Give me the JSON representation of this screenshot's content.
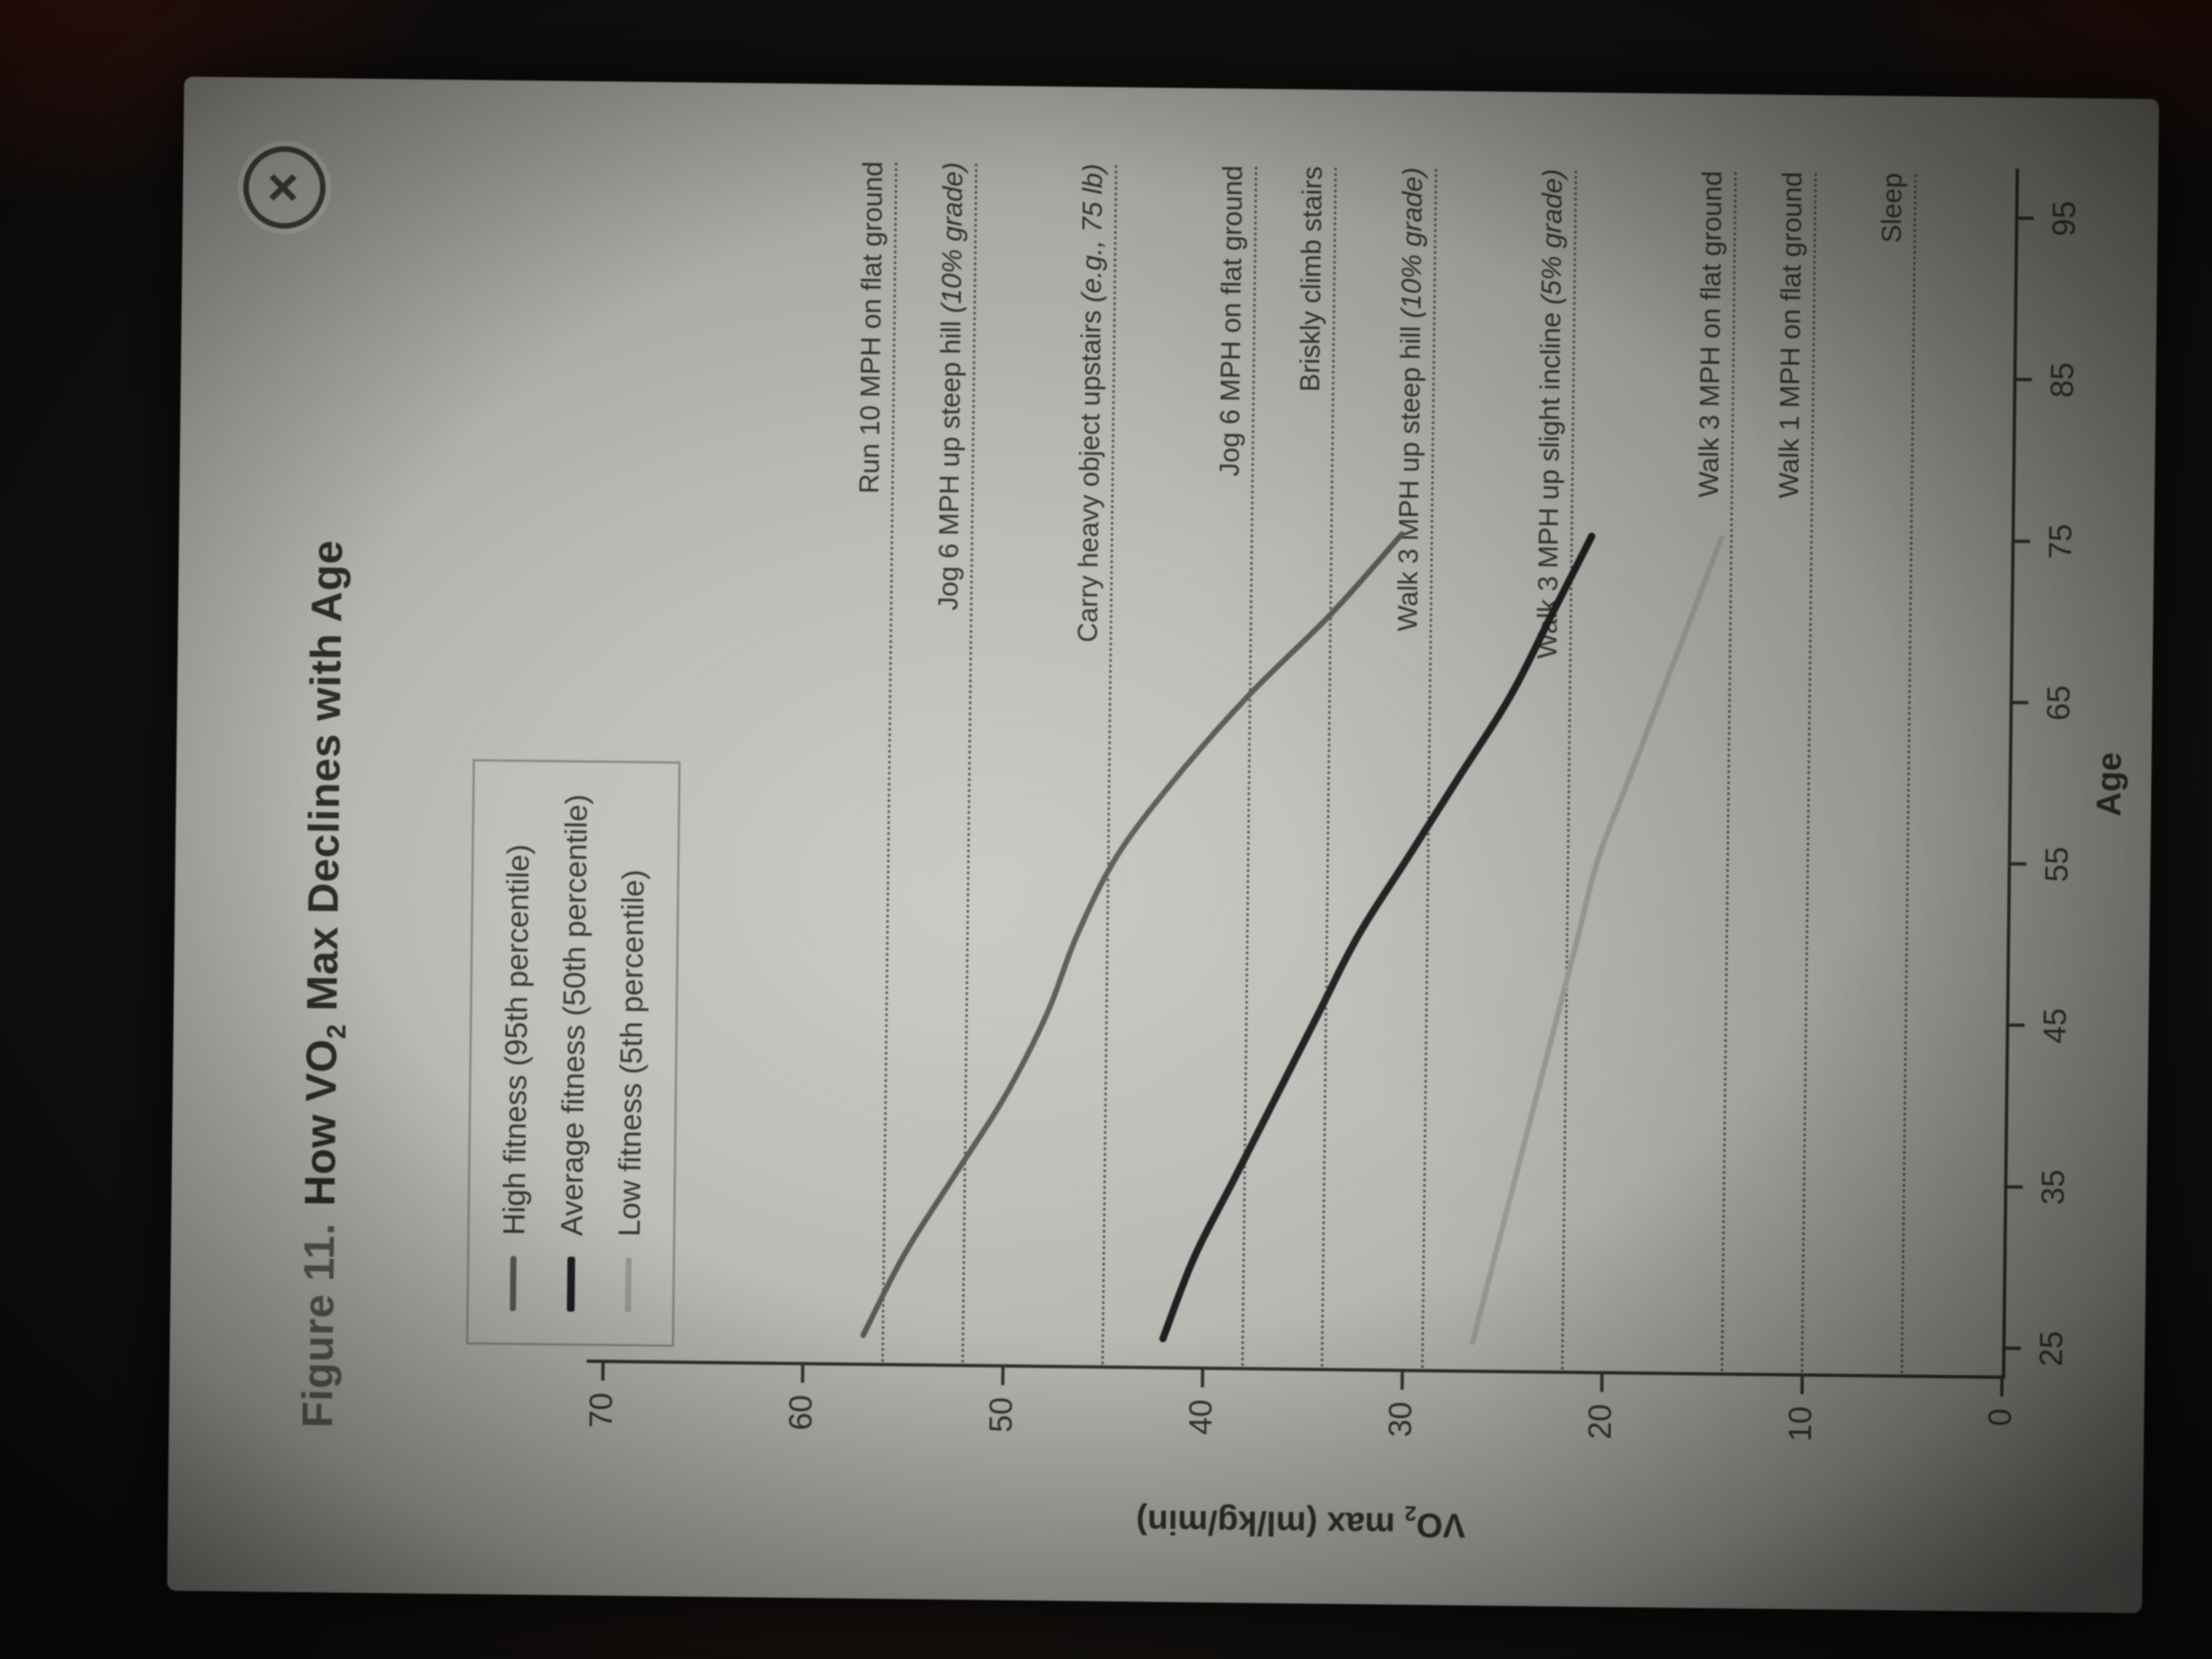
{
  "close_button": {
    "glyph": "×"
  },
  "figure": {
    "title_prefix": "Figure 11.",
    "title_pre": "How VO",
    "title_sub": "2",
    "title_post": " Max Declines with Age"
  },
  "chart_data": {
    "type": "line",
    "title": "Figure 11. How VO2 Max Declines with Age",
    "xlabel": "Age",
    "ylabel": "VO2 max (ml/kg/min)",
    "ylabel_pre": "VO",
    "ylabel_sub": "2",
    "ylabel_post": " max (ml/kg/min)",
    "xlim": [
      25,
      95
    ],
    "ylim": [
      0,
      70
    ],
    "x_ticks": [
      25,
      35,
      45,
      55,
      65,
      75,
      85,
      95
    ],
    "y_ticks": [
      70,
      60,
      50,
      40,
      30,
      20,
      10,
      0
    ],
    "grid": false,
    "legend_position": "top-left",
    "series": [
      {
        "name": "High fitness (95th percentile)",
        "color": "#575652",
        "width": 10,
        "x": [
          25,
          30,
          35,
          40,
          45,
          50,
          55,
          60,
          65,
          70,
          75
        ],
        "y": [
          57,
          55,
          52.5,
          50,
          48,
          46.5,
          44.5,
          41.5,
          38,
          34,
          30.5
        ]
      },
      {
        "name": "Average fitness (50th percentile)",
        "color": "#1b1c1e",
        "width": 13,
        "x": [
          25,
          30,
          35,
          40,
          45,
          50,
          55,
          60,
          65,
          70,
          75
        ],
        "y": [
          42,
          40.5,
          38.5,
          36.5,
          34.5,
          32.5,
          30,
          27.5,
          25,
          23,
          21
        ]
      },
      {
        "name": "Low fitness (5th percentile)",
        "color": "#9a9992",
        "width": 10,
        "x": [
          25,
          30,
          35,
          40,
          45,
          50,
          55,
          60,
          65,
          70,
          75
        ],
        "y": [
          26.5,
          25.5,
          24.5,
          23.5,
          22.5,
          21.5,
          20.5,
          19,
          17.5,
          16,
          14.5
        ]
      }
    ],
    "reference_lines": [
      {
        "value": 56,
        "label": "Run 10 MPH on flat ground",
        "note": ""
      },
      {
        "value": 52,
        "label": "Jog 6 MPH up steep hill ",
        "note": "(10% grade)"
      },
      {
        "value": 45,
        "label": "Carry heavy object upstairs ",
        "note": "(e.g., 75 lb)"
      },
      {
        "value": 38,
        "label": "Jog 6 MPH on flat ground",
        "note": ""
      },
      {
        "value": 34,
        "label": "Briskly climb stairs",
        "note": ""
      },
      {
        "value": 29,
        "label": "Walk 3 MPH up steep hill ",
        "note": "(10% grade)"
      },
      {
        "value": 22,
        "label": "Walk 3 MPH up slight incline ",
        "note": "(5% grade)"
      },
      {
        "value": 14,
        "label": "Walk 3 MPH on flat ground",
        "note": ""
      },
      {
        "value": 10,
        "label": "Walk 1 MPH on flat ground",
        "note": ""
      },
      {
        "value": 5,
        "label": "Sleep",
        "note": ""
      }
    ]
  }
}
